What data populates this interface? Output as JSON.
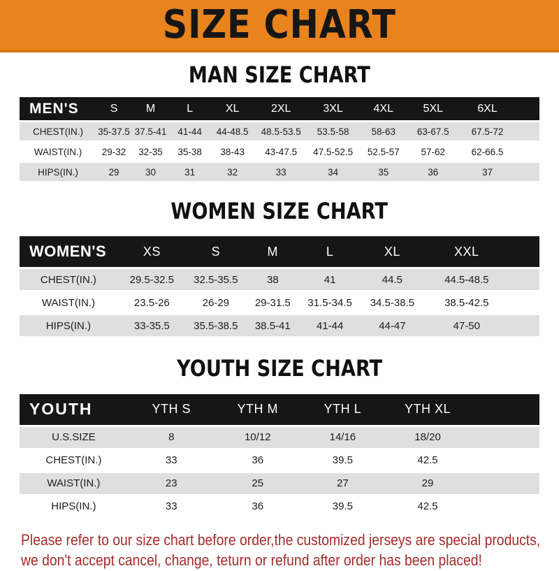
{
  "colors": {
    "banner_bg": "#E8831E",
    "bar_bg": "#161616",
    "row_stripe": "#DFDFDF",
    "footer_text": "#A62B2B"
  },
  "banner": {
    "title": "SIZE CHART"
  },
  "sections": [
    {
      "heading": "MAN SIZE CHART",
      "header_label": "MEN'S",
      "columns": [
        "S",
        "M",
        "L",
        "XL",
        "2XL",
        "3XL",
        "4XL",
        "5XL",
        "6XL"
      ],
      "rows": [
        {
          "label": "CHEST(IN.)",
          "values": [
            "35-37.5",
            "37.5-41",
            "41-44",
            "44-48.5",
            "48.5-53.5",
            "53.5-58",
            "58-63",
            "63-67.5",
            "67.5-72"
          ]
        },
        {
          "label": "WAIST(IN.)",
          "values": [
            "29-32",
            "32-35",
            "35-38",
            "38-43",
            "43-47.5",
            "47.5-52.5",
            "52.5-57",
            "57-62",
            "62-66.5"
          ]
        },
        {
          "label": "HIPS(IN.)",
          "values": [
            "29",
            "30",
            "31",
            "32",
            "33",
            "34",
            "35",
            "36",
            "37"
          ]
        }
      ]
    },
    {
      "heading": "WOMEN SIZE CHART",
      "header_label": "WOMEN'S",
      "columns": [
        "XS",
        "S",
        "M",
        "L",
        "XL",
        "XXL"
      ],
      "rows": [
        {
          "label": "CHEST(IN.)",
          "values": [
            "29.5-32.5",
            "32.5-35.5",
            "38",
            "41",
            "44.5",
            "44.5-48.5"
          ]
        },
        {
          "label": "WAIST(IN.)",
          "values": [
            "23.5-26",
            "26-29",
            "29-31.5",
            "31.5-34.5",
            "34.5-38.5",
            "38.5-42.5"
          ]
        },
        {
          "label": "HIPS(IN.)",
          "values": [
            "33-35.5",
            "35.5-38.5",
            "38.5-41",
            "41-44",
            "44-47",
            "47-50"
          ]
        }
      ]
    },
    {
      "heading": "YOUTH SIZE CHART",
      "header_label": "YOUTH",
      "columns": [
        "YTH S",
        "YTH M",
        "YTH L",
        "YTH XL"
      ],
      "rows": [
        {
          "label": "U.S.SIZE",
          "values": [
            "8",
            "10/12",
            "14/16",
            "18/20"
          ]
        },
        {
          "label": "CHEST(IN.)",
          "values": [
            "33",
            "36",
            "39.5",
            "42.5"
          ]
        },
        {
          "label": "WAIST(IN.)",
          "values": [
            "23",
            "25",
            "27",
            "29"
          ]
        },
        {
          "label": "HIPS(IN.)",
          "values": [
            "33",
            "36",
            "39.5",
            "42.5"
          ]
        }
      ]
    }
  ],
  "footer": {
    "line1": "Please refer to our size chart before order,the customized jerseys are special products,",
    "line2": "we don't accept cancel, change, teturn or refund after order has been placed!"
  }
}
